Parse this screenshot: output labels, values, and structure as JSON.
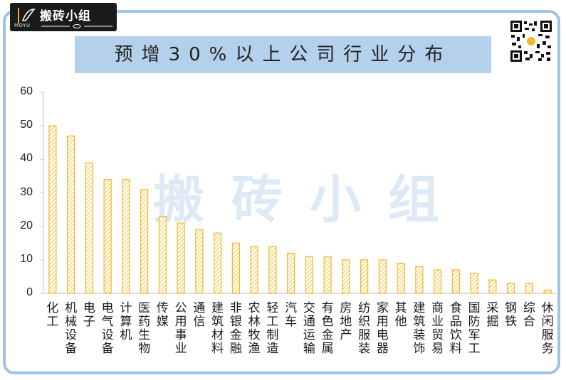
{
  "brand": {
    "name": "搬砖小组",
    "sub": "MOYU"
  },
  "title": "预增30%以上公司行业分布",
  "watermark": "搬砖小组",
  "colors": {
    "bar_stroke": "#f0b92c",
    "bar_hatch": "#f0b92c",
    "frame": "#9dc3e6",
    "banner": "#b4d0ea"
  },
  "chart_data": {
    "type": "bar",
    "title": "预增30%以上公司行业分布",
    "xlabel": "",
    "ylabel": "",
    "ylim": [
      0,
      60
    ],
    "yticks": [
      "0",
      "10",
      "20",
      "30",
      "40",
      "50",
      "60"
    ],
    "grid": false,
    "categories": [
      "化工",
      "机械设备",
      "电子",
      "电气设备",
      "计算机",
      "医药生物",
      "传媒",
      "公用事业",
      "通信",
      "建筑材料",
      "非银金融",
      "农林牧渔",
      "轻工制造",
      "汽车",
      "交通运输",
      "有色金属",
      "房地产",
      "纺织服装",
      "家用电器",
      "其他",
      "建筑装饰",
      "商业贸易",
      "食品饮料",
      "国防军工",
      "采掘",
      "钢铁",
      "综合",
      "休闲服务"
    ],
    "values": [
      50,
      47,
      39,
      34,
      34,
      31,
      23,
      21,
      19,
      18,
      15,
      14,
      14,
      12,
      11,
      11,
      10,
      10,
      10,
      9,
      8,
      7,
      7,
      6,
      4,
      3,
      3,
      1
    ]
  }
}
